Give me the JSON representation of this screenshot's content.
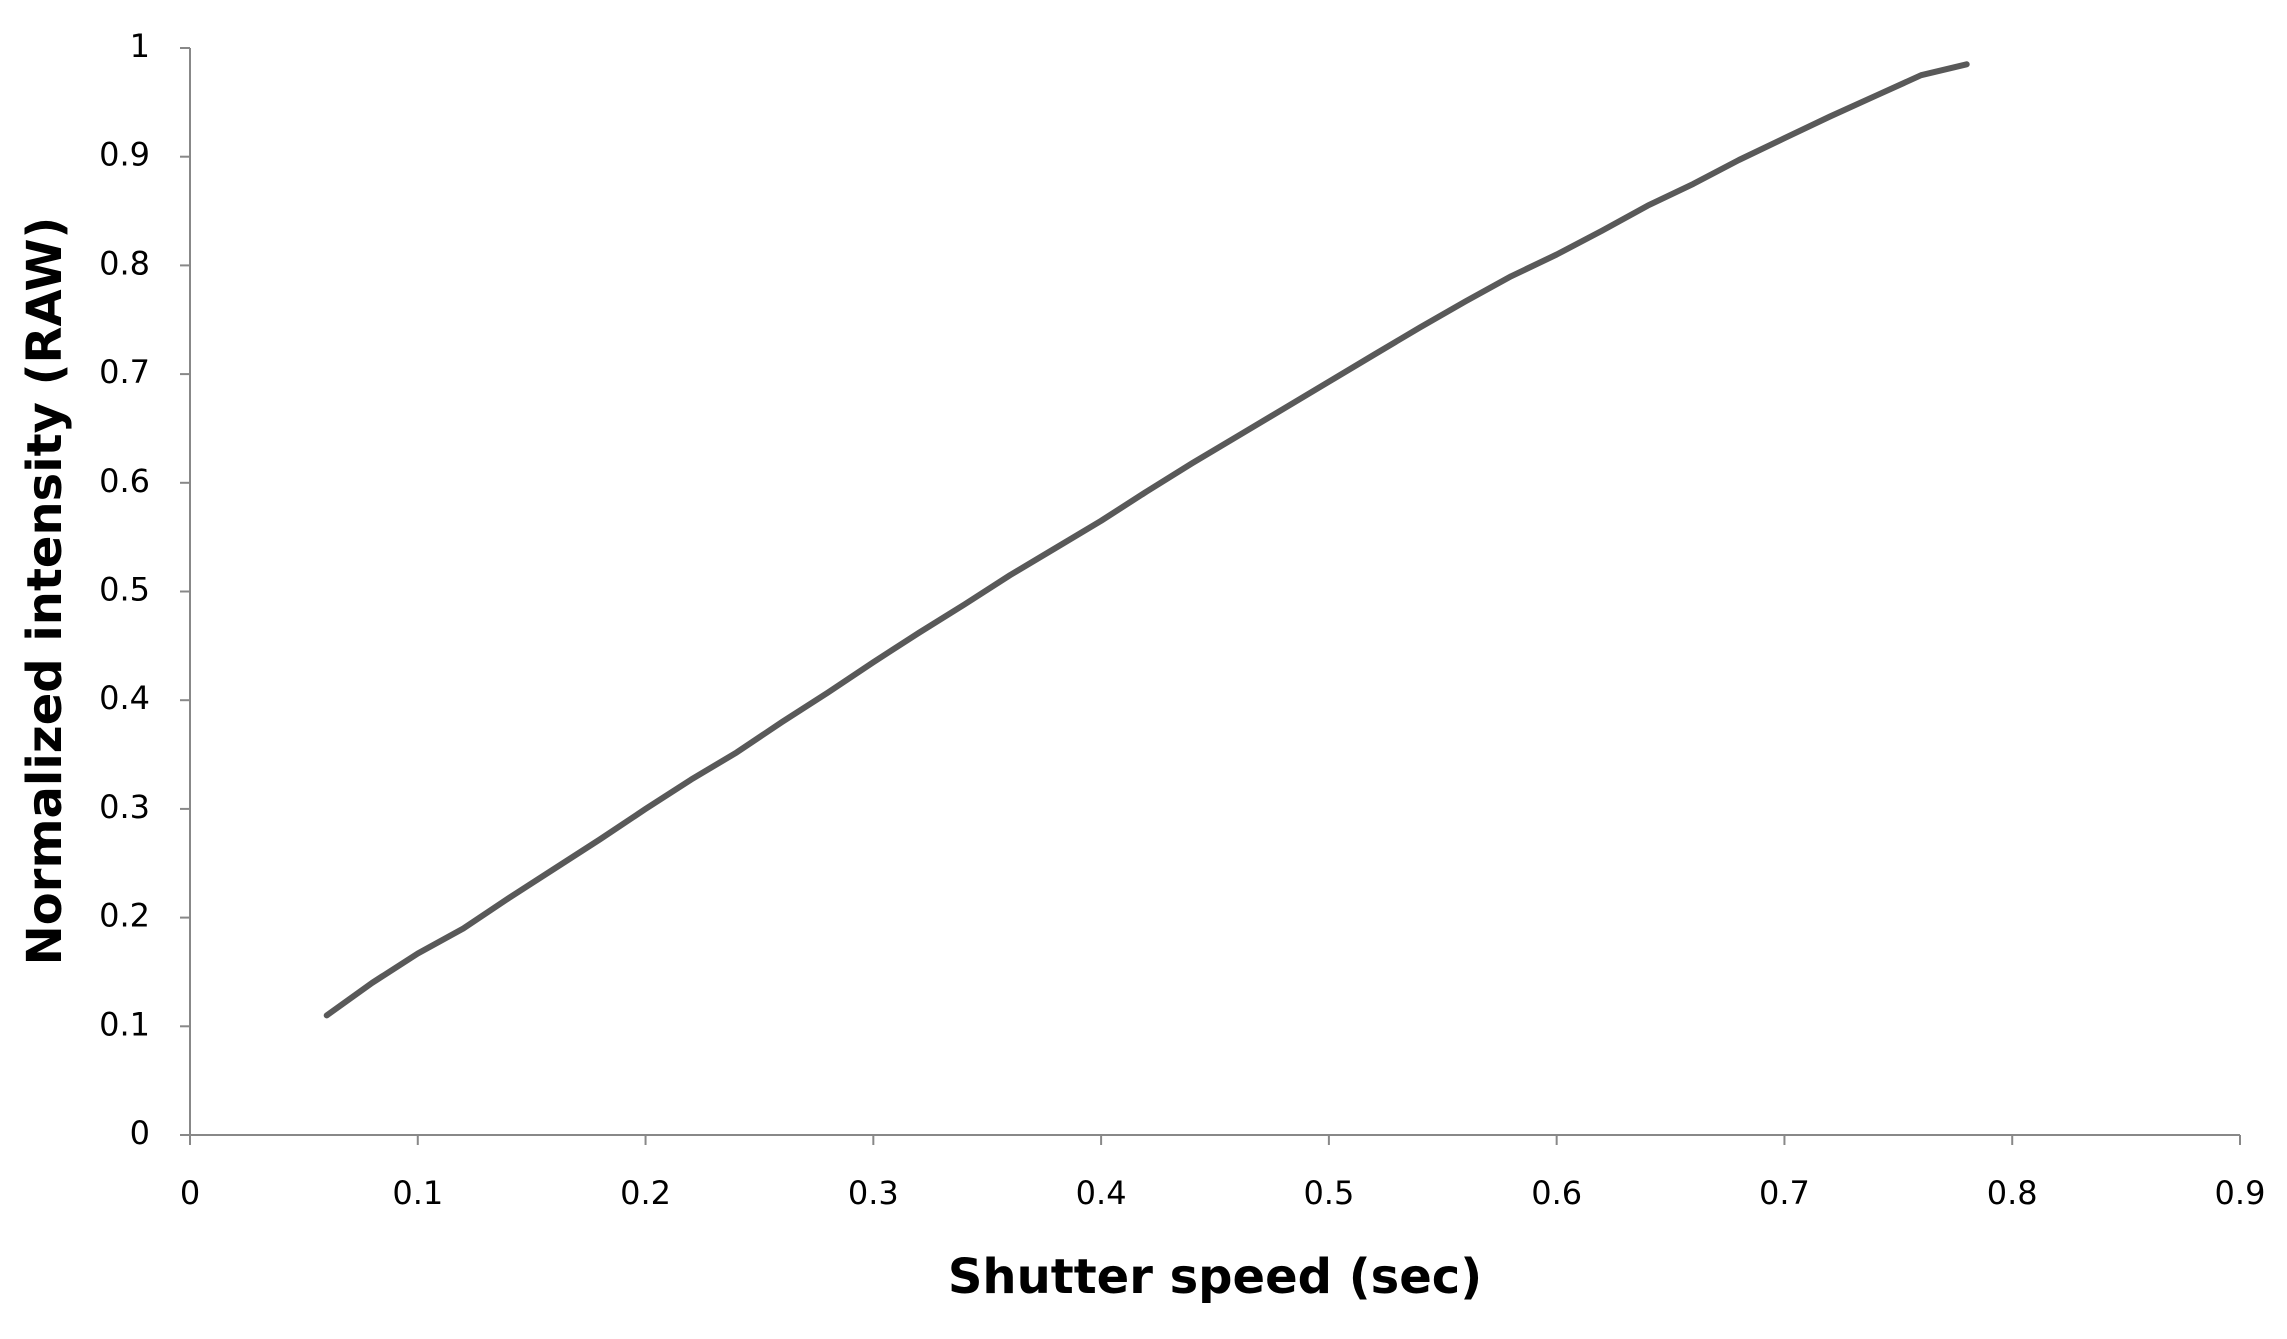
{
  "chart_data": {
    "type": "line",
    "x_label": "Shutter speed (sec)",
    "y_label": "Normalized intensity (RAW)",
    "x": [
      0.06,
      0.08,
      0.1,
      0.12,
      0.14,
      0.16,
      0.18,
      0.2,
      0.22,
      0.24,
      0.26,
      0.28,
      0.3,
      0.32,
      0.34,
      0.36,
      0.38,
      0.4,
      0.42,
      0.44,
      0.46,
      0.48,
      0.5,
      0.52,
      0.54,
      0.56,
      0.58,
      0.6,
      0.62,
      0.64,
      0.66,
      0.68,
      0.7,
      0.72,
      0.74,
      0.76,
      0.78
    ],
    "series": [
      {
        "color": "#595959",
        "values": [
          0.11,
          0.14,
          0.167,
          0.19,
          0.218,
          0.245,
          0.272,
          0.3,
          0.327,
          0.352,
          0.38,
          0.407,
          0.435,
          0.462,
          0.488,
          0.515,
          0.54,
          0.565,
          0.592,
          0.618,
          0.643,
          0.668,
          0.693,
          0.718,
          0.743,
          0.767,
          0.79,
          0.81,
          0.832,
          0.855,
          0.875,
          0.897,
          0.917,
          0.937,
          0.956,
          0.975,
          0.985
        ]
      }
    ],
    "xlim": [
      0,
      0.9
    ],
    "xticks": [
      0,
      0.1,
      0.2,
      0.3,
      0.4,
      0.5,
      0.6,
      0.7,
      0.8,
      0.9
    ],
    "ylim": [
      0,
      1
    ],
    "yticks": [
      0,
      0.1,
      0.2,
      0.3,
      0.4,
      0.5,
      0.6,
      0.7,
      0.8,
      0.9,
      1
    ]
  }
}
